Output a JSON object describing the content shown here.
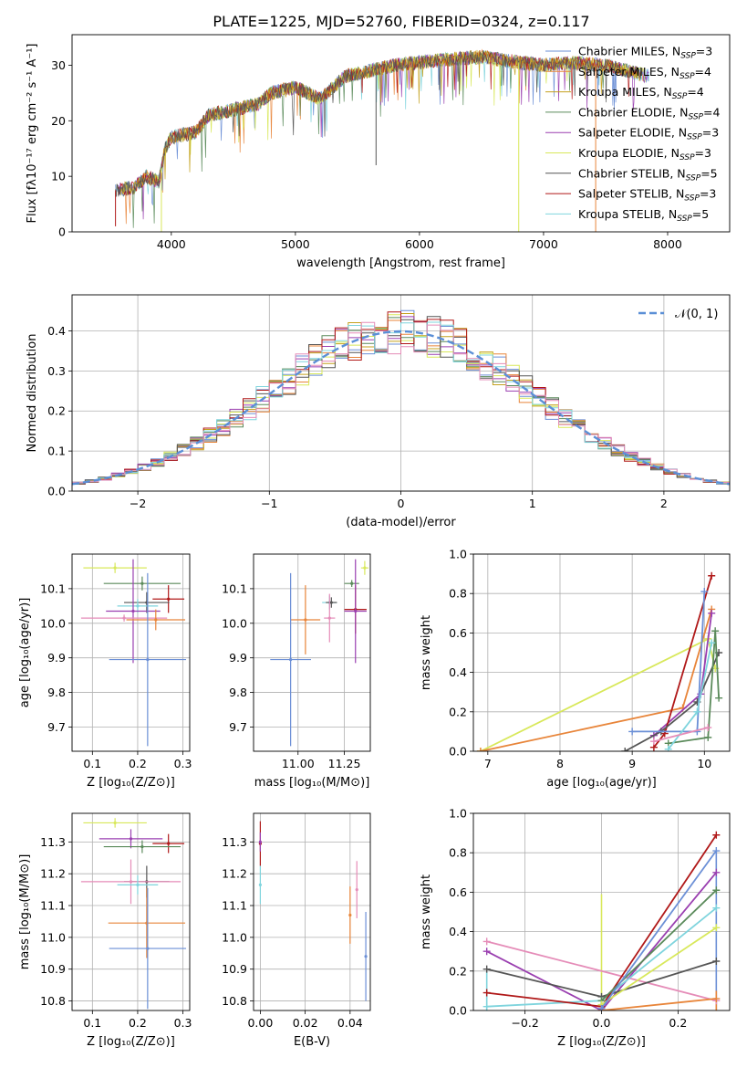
{
  "figure_title": "PLATE=1225, MJD=52760, FIBERID=0324, z=0.117",
  "colors": {
    "Chabrier MILES": "#6b8fd6",
    "Salpeter MILES": "#e8853a",
    "Kroupa MILES": "#c4a11d",
    "Chabrier ELODIE": "#5a8a5a",
    "Salpeter ELODIE": "#9a3fb0",
    "Kroupa ELODIE": "#d8e85a",
    "Chabrier STELIB": "#555555",
    "Salpeter STELIB": "#b01818",
    "Kroupa STELIB": "#7fd4dd",
    "pink": "#e58cb8",
    "normal_curve": "#5b8fd6"
  },
  "chart_data": [
    {
      "id": "spectrum",
      "type": "line",
      "xlabel": "wavelength [Angstrom, rest frame]",
      "ylabel": "Flux [fλ10⁻¹⁷ erg cm⁻² s⁻¹ A⁻¹]",
      "xlim": [
        3200,
        8500
      ],
      "ylim": [
        0,
        35.5
      ],
      "xticks": [
        "4000",
        "5000",
        "6000",
        "7000",
        "8000"
      ],
      "yticks": [
        "0",
        "10",
        "20",
        "30"
      ],
      "legend": "top-right",
      "wavelength_range": [
        3550,
        7850
      ],
      "envelope": [
        [
          3550,
          7.5
        ],
        [
          3700,
          8
        ],
        [
          3800,
          10
        ],
        [
          3900,
          9
        ],
        [
          3950,
          15
        ],
        [
          4000,
          17
        ],
        [
          4200,
          18
        ],
        [
          4300,
          21
        ],
        [
          4500,
          22
        ],
        [
          4700,
          23
        ],
        [
          4800,
          25
        ],
        [
          5000,
          26
        ],
        [
          5200,
          24
        ],
        [
          5400,
          28
        ],
        [
          5600,
          29
        ],
        [
          5800,
          30
        ],
        [
          6000,
          30.5
        ],
        [
          6200,
          31
        ],
        [
          6500,
          31.5
        ],
        [
          6800,
          30.5
        ],
        [
          7000,
          30
        ],
        [
          7200,
          30.5
        ],
        [
          7500,
          30
        ],
        [
          7850,
          28
        ]
      ],
      "series": [
        {
          "name": "Chabrier MILES, N",
          "sub": "SSP",
          "suffix": "=3"
        },
        {
          "name": "Salpeter MILES, N",
          "sub": "SSP",
          "suffix": "=4"
        },
        {
          "name": "Kroupa MILES, N",
          "sub": "SSP",
          "suffix": "=4"
        },
        {
          "name": "Chabrier ELODIE, N",
          "sub": "SSP",
          "suffix": "=4"
        },
        {
          "name": "Salpeter ELODIE, N",
          "sub": "SSP",
          "suffix": "=3"
        },
        {
          "name": "Kroupa ELODIE, N",
          "sub": "SSP",
          "suffix": "=3"
        },
        {
          "name": "Chabrier STELIB, N",
          "sub": "SSP",
          "suffix": "=5"
        },
        {
          "name": "Salpeter STELIB, N",
          "sub": "SSP",
          "suffix": "=3"
        },
        {
          "name": "Kroupa STELIB, N",
          "sub": "SSP",
          "suffix": "=5"
        }
      ]
    },
    {
      "id": "residuals",
      "type": "line",
      "xlabel": "(data-model)/error",
      "ylabel": "Normed distribution",
      "xlim": [
        -2.5,
        2.5
      ],
      "ylim": [
        0,
        0.49
      ],
      "xticks": [
        "−2",
        "−1",
        "0",
        "1",
        "2"
      ],
      "yticks": [
        "0.0",
        "0.1",
        "0.2",
        "0.3",
        "0.4"
      ],
      "grid": true,
      "legend": "top-right",
      "legend_label": "𝒩(0, 1)",
      "normal": {
        "mean": 0,
        "sigma": 1
      },
      "bin_width": 0.1
    },
    {
      "id": "age_vs_Z",
      "type": "scatter",
      "xlabel": "Z [log₁₀(Z/Z⊙)]",
      "ylabel": "age  [log₁₀(age/yr)]",
      "xlim": [
        0.055,
        0.315
      ],
      "ylim": [
        9.63,
        10.2
      ],
      "xticks": [
        "0.1",
        "0.2",
        "0.3"
      ],
      "yticks": [
        "9.7",
        "9.8",
        "9.9",
        "10.0",
        "10.1"
      ],
      "grid": true,
      "points": [
        {
          "c": "Kroupa ELODIE",
          "x": 0.15,
          "xe": 0.07,
          "y": 10.16,
          "ye": 0.015
        },
        {
          "c": "Chabrier ELODIE",
          "x": 0.21,
          "xe": 0.085,
          "y": 10.115,
          "ye": 0.02
        },
        {
          "c": "Salpeter STELIB",
          "x": 0.268,
          "xe": 0.035,
          "y": 10.07,
          "ye": 0.04
        },
        {
          "c": "Chabrier STELIB",
          "x": 0.22,
          "xe": 0.05,
          "y": 10.06,
          "ye": 0.03
        },
        {
          "c": "Kroupa STELIB",
          "x": 0.2,
          "xe": 0.045,
          "y": 10.05,
          "ye": 0.02
        },
        {
          "c": "Salpeter ELODIE",
          "x": 0.19,
          "xe": 0.06,
          "y": 10.035,
          "ye": 0.15
        },
        {
          "c": "pink",
          "x": 0.17,
          "xe": 0.095,
          "y": 10.015,
          "ye": 0.01
        },
        {
          "c": "Salpeter MILES",
          "x": 0.24,
          "xe": 0.065,
          "y": 10.01,
          "ye": 0.03
        },
        {
          "c": "Chabrier MILES",
          "x": 0.222,
          "xe": 0.085,
          "y": 9.895,
          "ye": 0.25
        }
      ]
    },
    {
      "id": "age_vs_mass",
      "type": "scatter",
      "xlabel": "mass [log₁₀(M/M⊙)]",
      "ylabel": "",
      "xlim": [
        10.76,
        11.39
      ],
      "ylim": [
        9.63,
        10.2
      ],
      "xticks": [
        "11.00",
        "11.25"
      ],
      "yticks": [
        "9.7",
        "9.8",
        "9.9",
        "10.0",
        "10.1"
      ],
      "grid": true,
      "points": [
        {
          "c": "Kroupa ELODIE",
          "x": 11.36,
          "xe": 0.02,
          "y": 10.16,
          "ye": 0.02
        },
        {
          "c": "Chabrier ELODIE",
          "x": 11.29,
          "xe": 0.04,
          "y": 10.115,
          "ye": 0.01
        },
        {
          "c": "Kroupa STELIB",
          "x": 11.17,
          "xe": 0.04,
          "y": 10.06,
          "ye": 0.02
        },
        {
          "c": "Chabrier STELIB",
          "x": 11.18,
          "xe": 0.03,
          "y": 10.06,
          "ye": 0.015
        },
        {
          "c": "Salpeter STELIB",
          "x": 11.31,
          "xe": 0.06,
          "y": 10.04,
          "ye": 0.07
        },
        {
          "c": "Salpeter ELODIE",
          "x": 11.31,
          "xe": 0.06,
          "y": 10.035,
          "ye": 0.15
        },
        {
          "c": "Salpeter MILES",
          "x": 11.04,
          "xe": 0.08,
          "y": 10.01,
          "ye": 0.1
        },
        {
          "c": "pink",
          "x": 11.17,
          "xe": 0.03,
          "y": 10.015,
          "ye": 0.07
        },
        {
          "c": "Chabrier MILES",
          "x": 10.96,
          "xe": 0.11,
          "y": 9.895,
          "ye": 0.25
        }
      ]
    },
    {
      "id": "weight_vs_age",
      "type": "line",
      "xlabel": "age  [log₁₀(age/yr)]",
      "ylabel": "mass weight",
      "xlim": [
        6.8,
        10.35
      ],
      "ylim": [
        0,
        1.0
      ],
      "xticks": [
        "7",
        "8",
        "9",
        "10"
      ],
      "yticks": [
        "0.0",
        "0.2",
        "0.4",
        "0.6",
        "0.8",
        "1.0"
      ],
      "grid": true,
      "series": [
        {
          "c": "Kroupa ELODIE",
          "points": [
            [
              6.9,
              0.0
            ],
            [
              10.05,
              0.57
            ],
            [
              10.15,
              0.42
            ]
          ]
        },
        {
          "c": "Salpeter MILES",
          "points": [
            [
              6.9,
              0.0
            ],
            [
              9.7,
              0.22
            ],
            [
              10.1,
              0.72
            ]
          ]
        },
        {
          "c": "Salpeter ELODIE",
          "points": [
            [
              9.3,
              0.08
            ],
            [
              9.95,
              0.29
            ],
            [
              10.1,
              0.7
            ]
          ]
        },
        {
          "c": "Salpeter STELIB",
          "points": [
            [
              9.3,
              0.02
            ],
            [
              9.45,
              0.09
            ],
            [
              10.1,
              0.89
            ]
          ]
        },
        {
          "c": "Chabrier STELIB",
          "points": [
            [
              8.9,
              0.0
            ],
            [
              9.4,
              0.1
            ],
            [
              9.9,
              0.25
            ],
            [
              10.2,
              0.5
            ]
          ]
        },
        {
          "c": "Chabrier MILES",
          "points": [
            [
              9.0,
              0.1
            ],
            [
              9.9,
              0.1
            ],
            [
              10.0,
              0.81
            ]
          ]
        },
        {
          "c": "Chabrier ELODIE",
          "points": [
            [
              9.5,
              0.04
            ],
            [
              10.05,
              0.07
            ],
            [
              10.15,
              0.61
            ],
            [
              10.2,
              0.27
            ]
          ]
        },
        {
          "c": "Kroupa STELIB",
          "points": [
            [
              9.5,
              0.01
            ],
            [
              9.9,
              0.2
            ],
            [
              10.1,
              0.55
            ]
          ]
        },
        {
          "c": "pink",
          "points": [
            [
              9.3,
              0.05
            ],
            [
              10.05,
              0.12
            ]
          ]
        }
      ]
    },
    {
      "id": "mass_vs_Z",
      "type": "scatter",
      "xlabel": "Z [log₁₀(Z/Z⊙)]",
      "ylabel": "mass [log₁₀(M/M⊙)]",
      "xlim": [
        0.055,
        0.315
      ],
      "ylim": [
        10.77,
        11.39
      ],
      "xticks": [
        "0.1",
        "0.2",
        "0.3"
      ],
      "yticks": [
        "10.8",
        "10.9",
        "11.0",
        "11.1",
        "11.2",
        "11.3"
      ],
      "grid": true,
      "points": [
        {
          "c": "Kroupa ELODIE",
          "x": 0.15,
          "xe": 0.07,
          "y": 11.36,
          "ye": 0.015
        },
        {
          "c": "Salpeter ELODIE",
          "x": 0.185,
          "xe": 0.07,
          "y": 11.31,
          "ye": 0.03
        },
        {
          "c": "Salpeter STELIB",
          "x": 0.268,
          "xe": 0.035,
          "y": 11.295,
          "ye": 0.03
        },
        {
          "c": "Chabrier ELODIE",
          "x": 0.21,
          "xe": 0.085,
          "y": 11.285,
          "ye": 0.02
        },
        {
          "c": "Chabrier STELIB",
          "x": 0.22,
          "xe": 0.05,
          "y": 11.175,
          "ye": 0.05
        },
        {
          "c": "pink",
          "x": 0.185,
          "xe": 0.11,
          "y": 11.175,
          "ye": 0.07
        },
        {
          "c": "Kroupa STELIB",
          "x": 0.2,
          "xe": 0.045,
          "y": 11.165,
          "ye": 0.03
        },
        {
          "c": "Salpeter MILES",
          "x": 0.22,
          "xe": 0.085,
          "y": 11.045,
          "ye": 0.11
        },
        {
          "c": "Chabrier MILES",
          "x": 0.222,
          "xe": 0.085,
          "y": 10.965,
          "ye": 0.19
        }
      ]
    },
    {
      "id": "mass_vs_ebv",
      "type": "scatter",
      "xlabel": "E(B-V)",
      "ylabel": "",
      "xlim": [
        -0.003,
        0.049
      ],
      "ylim": [
        10.77,
        11.39
      ],
      "xticks": [
        "0.00",
        "0.02",
        "0.04"
      ],
      "yticks": [
        "10.8",
        "10.9",
        "11.0",
        "11.1",
        "11.2",
        "11.3"
      ],
      "grid": true,
      "points": [
        {
          "c": "Salpeter STELIB",
          "x": 0.0,
          "xe": 0.0,
          "y": 11.295,
          "ye": 0.07
        },
        {
          "c": "Salpeter ELODIE",
          "x": 0.0,
          "xe": 0.0,
          "y": 11.3,
          "ye": 0.03
        },
        {
          "c": "Kroupa STELIB",
          "x": 0.0,
          "xe": 0.0,
          "y": 11.165,
          "ye": 0.06
        },
        {
          "c": "pink",
          "x": 0.043,
          "xe": 0.0,
          "y": 11.15,
          "ye": 0.09
        },
        {
          "c": "Salpeter MILES",
          "x": 0.04,
          "xe": 0.0,
          "y": 11.07,
          "ye": 0.09
        },
        {
          "c": "Chabrier MILES",
          "x": 0.047,
          "xe": 0.0,
          "y": 10.94,
          "ye": 0.14
        }
      ]
    },
    {
      "id": "weight_vs_Z",
      "type": "line",
      "xlabel": "Z [log₁₀(Z/Z⊙)]",
      "ylabel": "mass weight",
      "xlim": [
        -0.335,
        0.335
      ],
      "ylim": [
        0,
        1.0
      ],
      "xticks": [
        "−0.2",
        "0.0",
        "0.2"
      ],
      "yticks": [
        "0.0",
        "0.2",
        "0.4",
        "0.6",
        "0.8",
        "1.0"
      ],
      "grid": true,
      "series": [
        {
          "c": "pink",
          "points": [
            [
              -0.3,
              0.35
            ],
            [
              0.3,
              0.05
            ]
          ]
        },
        {
          "c": "Salpeter ELODIE",
          "points": [
            [
              -0.3,
              0.3
            ],
            [
              0.0,
              0.0
            ],
            [
              0.3,
              0.7
            ]
          ]
        },
        {
          "c": "Chabrier STELIB",
          "points": [
            [
              -0.3,
              0.21
            ],
            [
              0.0,
              0.07
            ],
            [
              0.3,
              0.25
            ]
          ]
        },
        {
          "c": "Kroupa STELIB",
          "points": [
            [
              -0.3,
              0.02
            ],
            [
              0.0,
              0.05
            ],
            [
              0.3,
              0.52
            ]
          ]
        },
        {
          "c": "Salpeter STELIB",
          "points": [
            [
              -0.3,
              0.09
            ],
            [
              0.0,
              0.02
            ],
            [
              0.3,
              0.89
            ]
          ]
        },
        {
          "c": "Chabrier ELODIE",
          "points": [
            [
              0.0,
              0.05
            ],
            [
              0.3,
              0.61
            ]
          ]
        },
        {
          "c": "Kroupa ELODIE",
          "points": [
            [
              0.0,
              0.03
            ],
            [
              0.3,
              0.42
            ]
          ]
        },
        {
          "c": "Salpeter MILES",
          "points": [
            [
              0.0,
              0.0
            ],
            [
              0.3,
              0.06
            ]
          ]
        },
        {
          "c": "Chabrier MILES",
          "points": [
            [
              0.0,
              0.01
            ],
            [
              0.3,
              0.81
            ]
          ]
        }
      ],
      "vbars": [
        {
          "c": "Kroupa ELODIE",
          "x": 0.0,
          "lo": 0.0,
          "hi": 0.59
        },
        {
          "c": "Kroupa STELIB",
          "x": -0.3,
          "lo": 0.0,
          "hi": 0.2
        },
        {
          "c": "Chabrier MILES",
          "x": 0.3,
          "lo": 0.0,
          "hi": 0.81
        },
        {
          "c": "Salpeter MILES",
          "x": 0.3,
          "lo": 0.0,
          "hi": 0.1
        }
      ]
    }
  ]
}
